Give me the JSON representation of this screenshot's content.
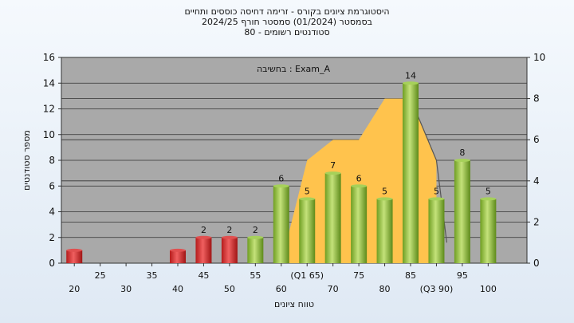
{
  "header": {
    "line1": "היסטוגרמת ציונים בקורס - זרימה דחיסה כוססים ותחיים",
    "line2": "בסמסטר (01/2024) סמסטר חורף 2024/25",
    "line3": "סטודנטים רשומים - 80"
  },
  "chart_data": {
    "type": "bar",
    "title": "",
    "ylabel": "מספר סטודנטים",
    "xlabel": "טווח ציונים",
    "annotation": "בחשיבה : Exam_A",
    "ylim": [
      0,
      16
    ],
    "yticks": [
      0,
      2,
      4,
      6,
      8,
      10,
      12,
      14,
      16
    ],
    "y2lim": [
      0,
      10
    ],
    "y2ticks": [
      0,
      2,
      4,
      6,
      8,
      10
    ],
    "categories": [
      20,
      25,
      30,
      35,
      40,
      45,
      50,
      55,
      60,
      65,
      70,
      75,
      80,
      85,
      90,
      95,
      100
    ],
    "values": [
      1,
      0,
      0,
      0,
      1,
      2,
      2,
      2,
      6,
      5,
      7,
      6,
      5,
      14,
      5,
      8,
      5
    ],
    "shown_labels": [
      false,
      false,
      false,
      false,
      false,
      true,
      true,
      true,
      true,
      true,
      true,
      true,
      true,
      true,
      true,
      true,
      true
    ],
    "upper_tick_labels": [
      "25",
      "35",
      "45",
      "55",
      "(Q1 65)",
      "75",
      "85",
      "95"
    ],
    "lower_tick_labels": [
      "20",
      "30",
      "40",
      "50",
      "60",
      "70",
      "80",
      "(Q3 90)",
      "100"
    ],
    "bar_colors": {
      "fail": "#d42a2a",
      "pass": "#8bbf3a"
    },
    "area_series": {
      "color": "#ffc34d",
      "x": [
        60,
        65,
        70,
        75,
        80,
        85,
        90
      ],
      "y": [
        0,
        5,
        6,
        6,
        8,
        8,
        5
      ]
    },
    "line_series": {
      "color": "#555555",
      "x": [
        85,
        90,
        92
      ],
      "y": [
        8,
        5,
        1
      ]
    },
    "grid": true
  }
}
